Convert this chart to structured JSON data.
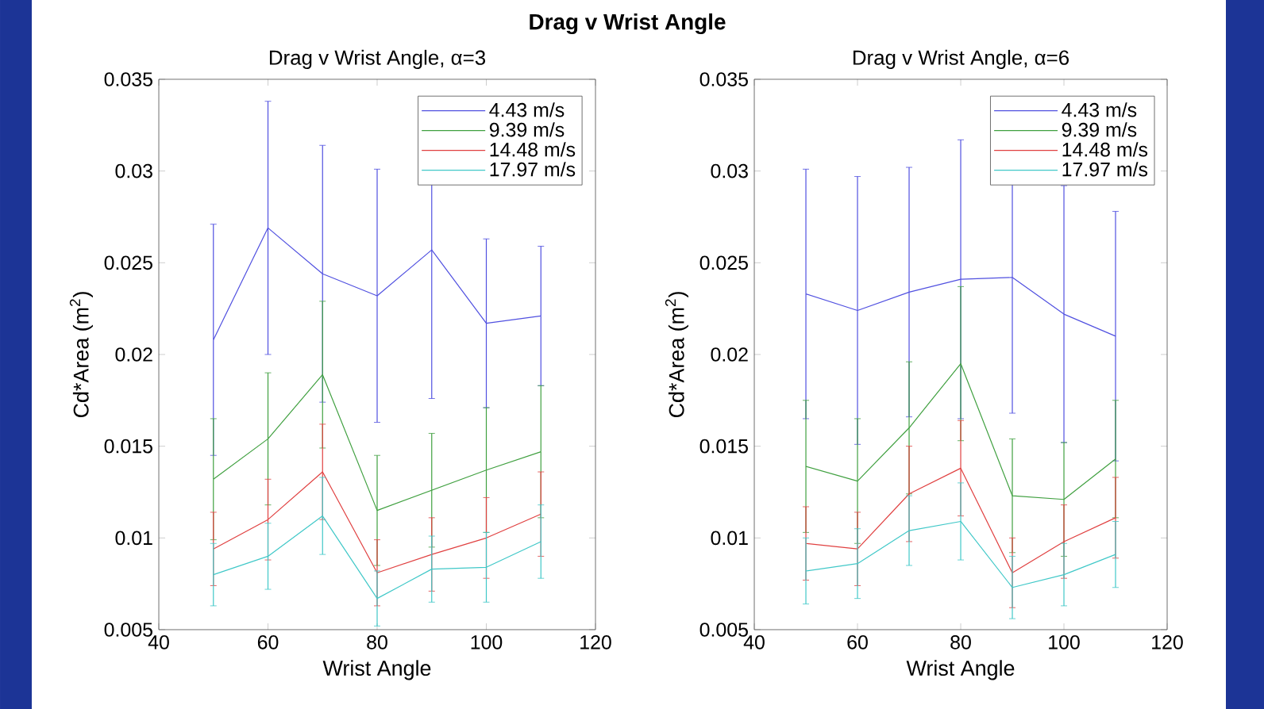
{
  "chart_data": [
    {
      "type": "line",
      "title": "Drag v Wrist Angle, α=3",
      "xlabel": "Wrist Angle",
      "ylabel": "Cd*Area (m$^{2}$)",
      "annotations": [
        "**Drag v Wrist Angle**"
      ],
      "x": [
        50,
        60,
        70,
        80,
        90,
        100,
        110
      ],
      "xlim": [
        40,
        120
      ],
      "xticks": [
        40,
        60,
        80,
        100,
        120
      ],
      "ylim": [
        0.005,
        0.035
      ],
      "yticks": [
        0.005,
        0.01,
        0.015,
        0.02,
        0.025,
        0.03,
        0.035
      ],
      "grid": false,
      "legend": "top right",
      "line_style": "solid",
      "series": [
        {
          "name": "4.43 m/s",
          "color": "#5050e0",
          "values": [
            0.0208,
            0.0269,
            0.0244,
            0.0232,
            0.0257,
            0.0217,
            0.0221
          ],
          "errors": [
            0.0063,
            0.0069,
            0.007,
            0.0069,
            0.0081,
            0.0046,
            0.0038
          ]
        },
        {
          "name": "9.39 m/s",
          "color": "#40a040",
          "values": [
            0.0132,
            0.0154,
            0.0189,
            0.0115,
            0.0126,
            0.0137,
            0.0147
          ],
          "errors": [
            0.0033,
            0.0036,
            0.004,
            0.003,
            0.0031,
            0.0034,
            0.0036
          ]
        },
        {
          "name": "14.48 m/s",
          "color": "#e04040",
          "values": [
            0.0094,
            0.011,
            0.0136,
            0.0081,
            0.0091,
            0.01,
            0.0113
          ],
          "errors": [
            0.002,
            0.0022,
            0.0026,
            0.0018,
            0.002,
            0.0022,
            0.0023
          ]
        },
        {
          "name": "17.97 m/s",
          "color": "#40c8c8",
          "values": [
            0.008,
            0.009,
            0.0112,
            0.0067,
            0.0083,
            0.0084,
            0.0098
          ],
          "errors": [
            0.0017,
            0.0018,
            0.0021,
            0.0015,
            0.0018,
            0.0019,
            0.002
          ]
        }
      ]
    },
    {
      "type": "line",
      "title": "Drag v Wrist Angle, α=6",
      "xlabel": "Wrist Angle",
      "ylabel": "Cd*Area (m$^{2}$)",
      "x": [
        50,
        60,
        70,
        80,
        90,
        100,
        110
      ],
      "xlim": [
        40,
        120
      ],
      "xticks": [
        40,
        60,
        80,
        100,
        120
      ],
      "ylim": [
        0.005,
        0.035
      ],
      "yticks": [
        0.005,
        0.01,
        0.015,
        0.02,
        0.025,
        0.03,
        0.035
      ],
      "grid": false,
      "legend": "top right",
      "line_style": "solid",
      "series": [
        {
          "name": "4.43 m/s",
          "color": "#5050e0",
          "values": [
            0.0233,
            0.0224,
            0.0234,
            0.0241,
            0.0242,
            0.0222,
            0.021
          ],
          "errors": [
            0.0068,
            0.0073,
            0.0068,
            0.0076,
            0.0074,
            0.007,
            0.0068
          ]
        },
        {
          "name": "9.39 m/s",
          "color": "#40a040",
          "values": [
            0.0139,
            0.0131,
            0.016,
            0.0195,
            0.0123,
            0.0121,
            0.0143
          ],
          "errors": [
            0.0036,
            0.0034,
            0.0036,
            0.0042,
            0.0031,
            0.0031,
            0.0032
          ]
        },
        {
          "name": "14.48 m/s",
          "color": "#e04040",
          "values": [
            0.0097,
            0.0094,
            0.0124,
            0.0138,
            0.0081,
            0.0098,
            0.0111
          ],
          "errors": [
            0.002,
            0.002,
            0.0026,
            0.0026,
            0.0019,
            0.002,
            0.0022
          ]
        },
        {
          "name": "17.97 m/s",
          "color": "#40c8c8",
          "values": [
            0.0082,
            0.0086,
            0.0104,
            0.0109,
            0.0073,
            0.008,
            0.0091
          ],
          "errors": [
            0.0018,
            0.0019,
            0.0019,
            0.0021,
            0.0017,
            0.0017,
            0.0018
          ]
        }
      ]
    }
  ]
}
